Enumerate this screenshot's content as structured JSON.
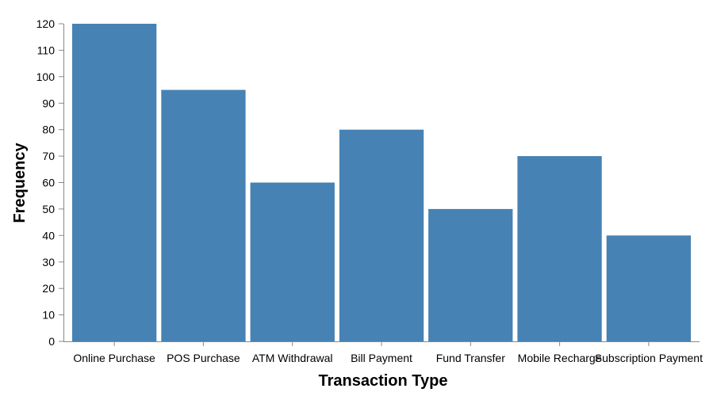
{
  "chart_data": {
    "type": "bar",
    "categories": [
      "Online Purchase",
      "POS Purchase",
      "ATM Withdrawal",
      "Bill Payment",
      "Fund Transfer",
      "Mobile Recharge",
      "Subscription Payment"
    ],
    "values": [
      120,
      95,
      60,
      80,
      50,
      70,
      40
    ],
    "xlabel": "Transaction Type",
    "ylabel": "Frequency",
    "ylim": [
      0,
      120
    ],
    "yticks": [
      0,
      10,
      20,
      30,
      40,
      50,
      60,
      70,
      80,
      90,
      100,
      110,
      120
    ],
    "grid": false,
    "legend": "none",
    "bar_color": "#4682b4"
  }
}
